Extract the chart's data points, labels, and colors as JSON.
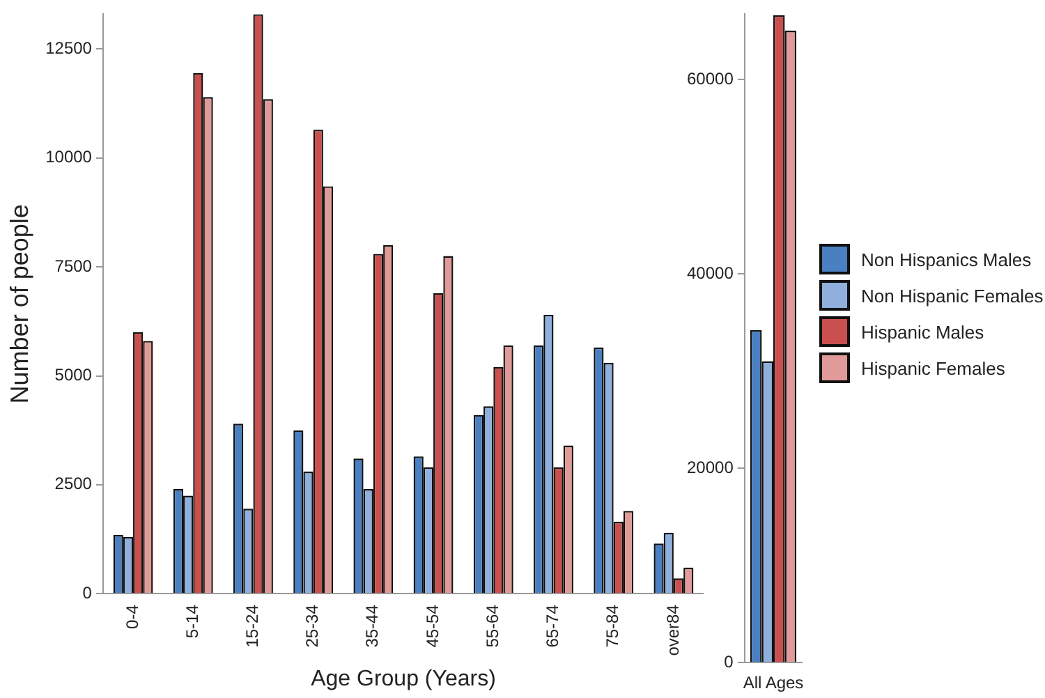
{
  "chart_data": [
    {
      "type": "bar",
      "xlabel": "Age Group (Years)",
      "ylabel": "Number of people",
      "categories": [
        "0-4",
        "5-14",
        "15-24",
        "25-34",
        "35-44",
        "45-54",
        "55-64",
        "65-74",
        "75-84",
        "over84"
      ],
      "ylim": [
        0,
        13300
      ],
      "yticks": [
        0,
        2500,
        5000,
        7500,
        10000,
        12500
      ],
      "grid": false,
      "legend": false,
      "series": [
        {
          "color": "#4a7fc1",
          "values": [
            1350,
            2400,
            3900,
            3750,
            3100,
            3150,
            4100,
            5700,
            5650,
            1150
          ]
        },
        {
          "color": "#8fb0dd",
          "values": [
            1300,
            2250,
            1950,
            2800,
            2400,
            2900,
            4300,
            6400,
            5300,
            1400
          ]
        },
        {
          "color": "#c9504f",
          "values": [
            6000,
            11950,
            13300,
            10650,
            7800,
            6900,
            5200,
            2900,
            1650,
            350
          ]
        },
        {
          "color": "#e09a98",
          "values": [
            5800,
            11400,
            11350,
            9350,
            8000,
            7750,
            5700,
            3400,
            1900,
            600
          ]
        }
      ]
    },
    {
      "type": "bar",
      "categories": [
        "All Ages"
      ],
      "ylim": [
        0,
        66700
      ],
      "yticks": [
        0,
        20000,
        40000,
        60000
      ],
      "grid": false,
      "legend": "right",
      "series": [
        {
          "name": "Non Hispanics Males",
          "color": "#4a7fc1",
          "values": [
            34200
          ]
        },
        {
          "name": "Non Hispanic Females",
          "color": "#8fb0dd",
          "values": [
            31000
          ]
        },
        {
          "name": "Hispanic Males",
          "color": "#c9504f",
          "values": [
            66600
          ]
        },
        {
          "name": "Hispanic Females",
          "color": "#e09a98",
          "values": [
            65000
          ]
        }
      ]
    }
  ]
}
